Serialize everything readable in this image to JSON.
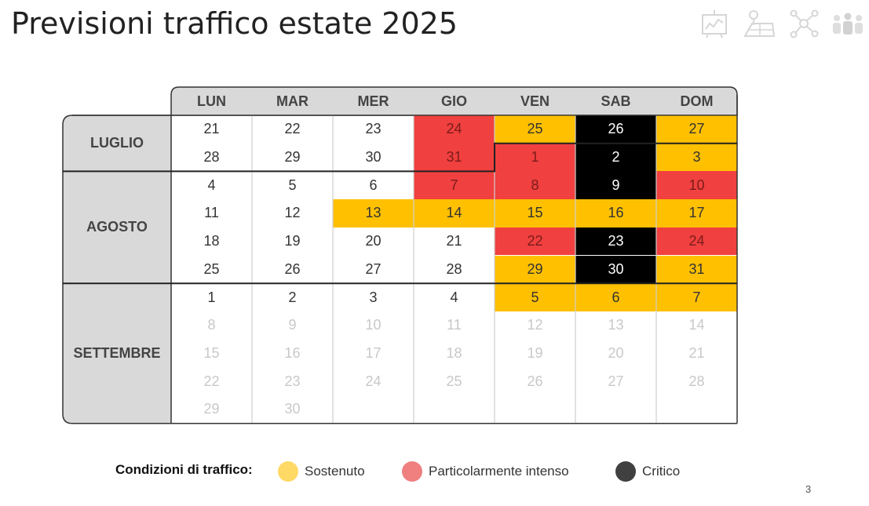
{
  "title": "Previsioni traffico estate 2025",
  "days": [
    "LUN",
    "MAR",
    "MER",
    "GIO",
    "VEN",
    "SAB",
    "DOM"
  ],
  "months": [
    {
      "name": "LUGLIO",
      "first_row": 0,
      "row_count": 2
    },
    {
      "name": "AGOSTO",
      "first_row": 2,
      "row_count": 4
    },
    {
      "name": "SETTEMBRE",
      "first_row": 6,
      "row_count": 5
    }
  ],
  "weeks": [
    [
      {
        "d": "21"
      },
      {
        "d": "22"
      },
      {
        "d": "23"
      },
      {
        "d": "24",
        "s": "int"
      },
      {
        "d": "25",
        "s": "sost"
      },
      {
        "d": "26",
        "s": "crit"
      },
      {
        "d": "27",
        "s": "sost"
      }
    ],
    [
      {
        "d": "28"
      },
      {
        "d": "29"
      },
      {
        "d": "30"
      },
      {
        "d": "31",
        "s": "int"
      },
      {
        "d": "1",
        "s": "int"
      },
      {
        "d": "2",
        "s": "crit"
      },
      {
        "d": "3",
        "s": "sost"
      }
    ],
    [
      {
        "d": "4"
      },
      {
        "d": "5"
      },
      {
        "d": "6"
      },
      {
        "d": "7",
        "s": "int"
      },
      {
        "d": "8",
        "s": "int"
      },
      {
        "d": "9",
        "s": "crit"
      },
      {
        "d": "10",
        "s": "int"
      }
    ],
    [
      {
        "d": "11"
      },
      {
        "d": "12"
      },
      {
        "d": "13",
        "s": "sost"
      },
      {
        "d": "14",
        "s": "sost"
      },
      {
        "d": "15",
        "s": "sost"
      },
      {
        "d": "16",
        "s": "sost"
      },
      {
        "d": "17",
        "s": "sost"
      }
    ],
    [
      {
        "d": "18"
      },
      {
        "d": "19"
      },
      {
        "d": "20"
      },
      {
        "d": "21"
      },
      {
        "d": "22",
        "s": "int"
      },
      {
        "d": "23",
        "s": "crit"
      },
      {
        "d": "24",
        "s": "int"
      }
    ],
    [
      {
        "d": "25"
      },
      {
        "d": "26"
      },
      {
        "d": "27"
      },
      {
        "d": "28"
      },
      {
        "d": "29",
        "s": "sost"
      },
      {
        "d": "30",
        "s": "crit"
      },
      {
        "d": "31",
        "s": "sost"
      }
    ],
    [
      {
        "d": "1"
      },
      {
        "d": "2"
      },
      {
        "d": "3"
      },
      {
        "d": "4"
      },
      {
        "d": "5",
        "s": "sost"
      },
      {
        "d": "6",
        "s": "sost"
      },
      {
        "d": "7",
        "s": "sost"
      }
    ],
    [
      {
        "d": "8",
        "s": "dim"
      },
      {
        "d": "9",
        "s": "dim"
      },
      {
        "d": "10",
        "s": "dim"
      },
      {
        "d": "11",
        "s": "dim"
      },
      {
        "d": "12",
        "s": "dim"
      },
      {
        "d": "13",
        "s": "dim"
      },
      {
        "d": "14",
        "s": "dim"
      }
    ],
    [
      {
        "d": "15",
        "s": "dim"
      },
      {
        "d": "16",
        "s": "dim"
      },
      {
        "d": "17",
        "s": "dim"
      },
      {
        "d": "18",
        "s": "dim"
      },
      {
        "d": "19",
        "s": "dim"
      },
      {
        "d": "20",
        "s": "dim"
      },
      {
        "d": "21",
        "s": "dim"
      }
    ],
    [
      {
        "d": "22",
        "s": "dim"
      },
      {
        "d": "23",
        "s": "dim"
      },
      {
        "d": "24",
        "s": "dim"
      },
      {
        "d": "25",
        "s": "dim"
      },
      {
        "d": "26",
        "s": "dim"
      },
      {
        "d": "27",
        "s": "dim"
      },
      {
        "d": "28",
        "s": "dim"
      }
    ],
    [
      {
        "d": "29",
        "s": "dim"
      },
      {
        "d": "30",
        "s": "dim"
      },
      {
        "d": ""
      },
      {
        "d": ""
      },
      {
        "d": ""
      },
      {
        "d": ""
      },
      {
        "d": ""
      }
    ]
  ],
  "legend": {
    "label": "Condizioni di traffico:",
    "items": [
      {
        "name": "Sostenuto",
        "color": "#ffd966"
      },
      {
        "name": "Particolarmente intenso",
        "color": "#f07f7f"
      },
      {
        "name": "Critico",
        "color": "#404040"
      }
    ]
  },
  "page_number": "3",
  "icons": [
    "presentation-board-icon",
    "field-map-icon",
    "network-icon",
    "people-group-icon"
  ]
}
